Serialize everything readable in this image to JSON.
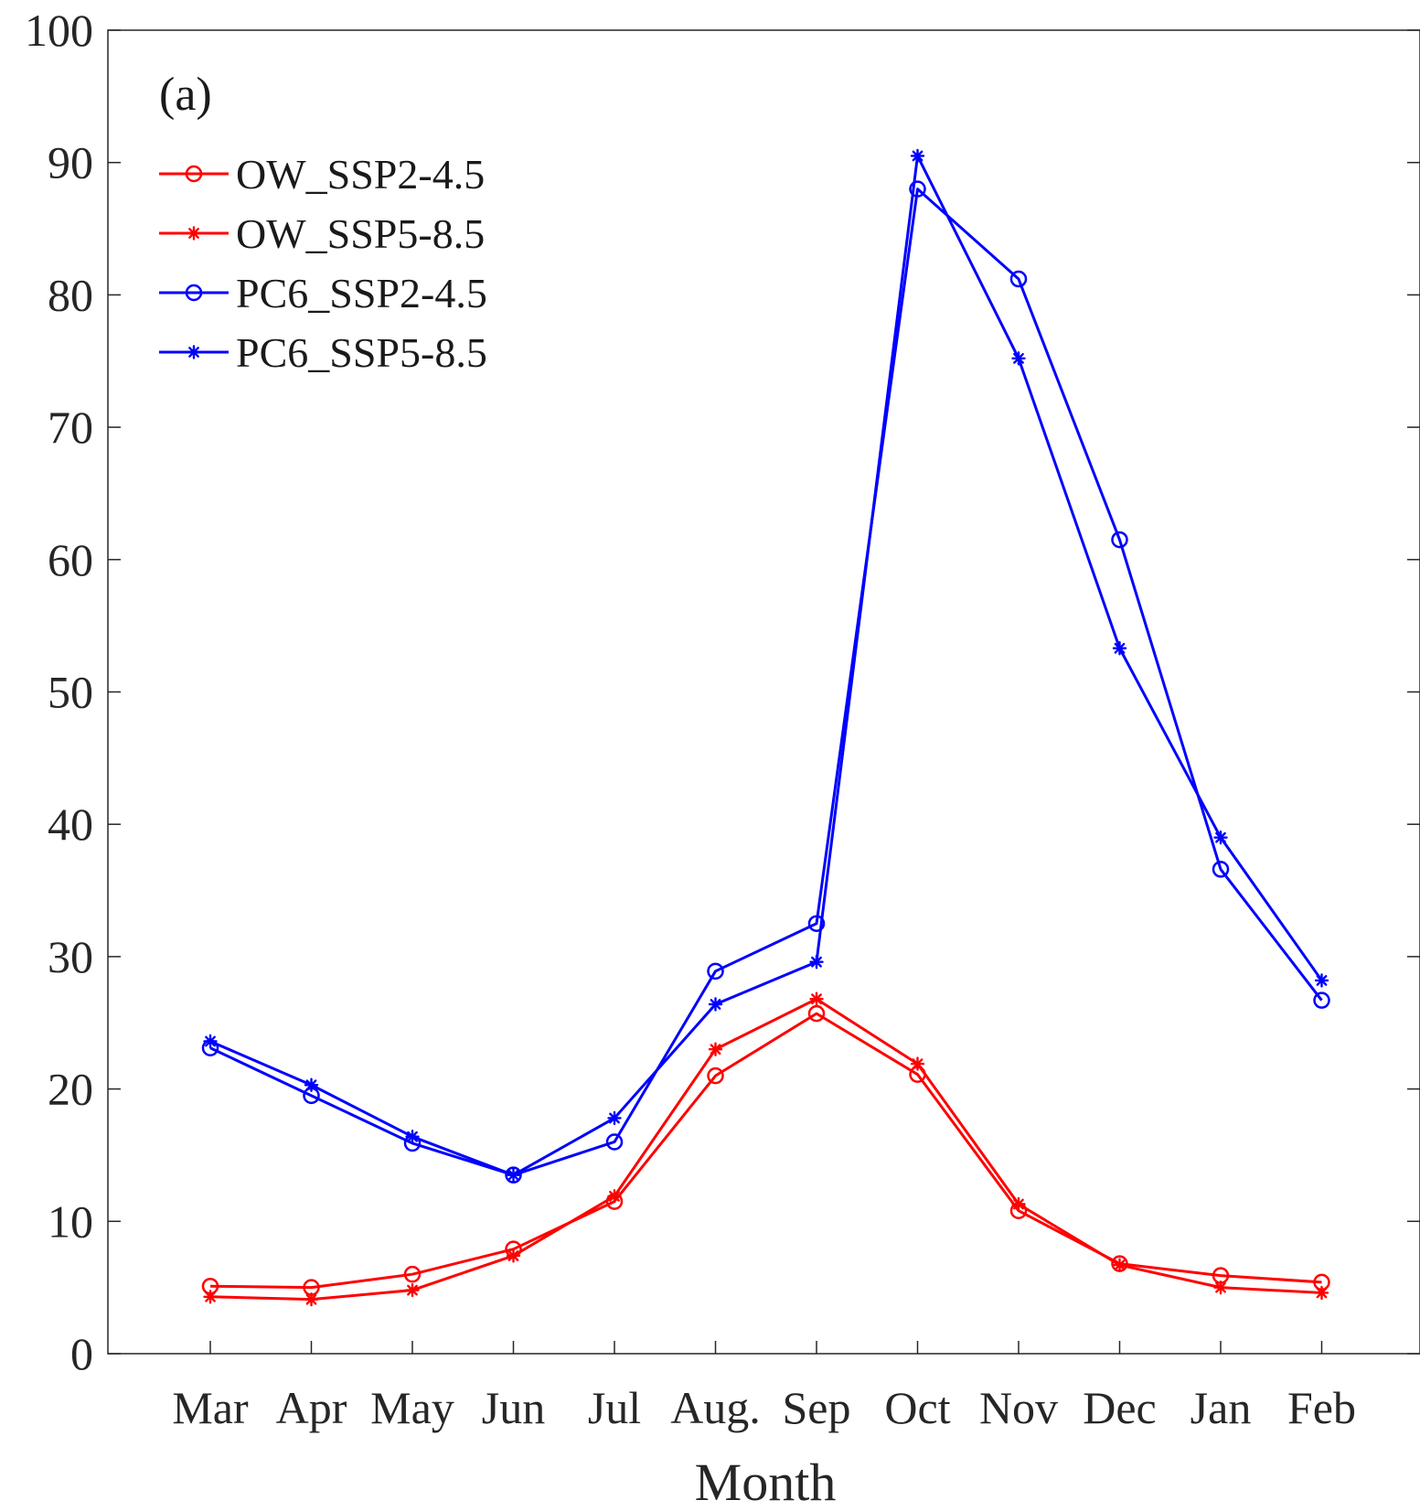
{
  "chart_data": {
    "type": "line",
    "panel_label": "(a)",
    "title": "",
    "xlabel": "Month",
    "ylabel": "",
    "categories": [
      "Mar",
      "Apr",
      "May",
      "Jun",
      "Jul",
      "Aug.",
      "Sep",
      "Oct",
      "Nov",
      "Dec",
      "Jan",
      "Feb"
    ],
    "ylim": [
      0,
      100
    ],
    "yticks": [
      0,
      10,
      20,
      30,
      40,
      50,
      60,
      70,
      80,
      90,
      100
    ],
    "grid": false,
    "legend_position": "top-left",
    "series": [
      {
        "name": "OW_SSP2-4.5",
        "color": "#ff0000",
        "marker": "circle",
        "values": [
          5.1,
          5.0,
          6.0,
          7.9,
          11.5,
          21.0,
          25.7,
          21.1,
          10.8,
          6.8,
          5.9,
          5.4
        ]
      },
      {
        "name": "OW_SSP5-8.5",
        "color": "#ff0000",
        "marker": "star",
        "values": [
          4.3,
          4.1,
          4.8,
          7.4,
          11.9,
          23.0,
          26.8,
          21.9,
          11.3,
          6.7,
          5.0,
          4.6
        ]
      },
      {
        "name": "PC6_SSP2-4.5",
        "color": "#0000ff",
        "marker": "circle",
        "values": [
          23.1,
          19.5,
          15.9,
          13.5,
          16.0,
          28.9,
          32.5,
          88.0,
          81.2,
          61.5,
          36.6,
          26.7
        ]
      },
      {
        "name": "PC6_SSP5-8.5",
        "color": "#0000ff",
        "marker": "star",
        "values": [
          23.6,
          20.3,
          16.4,
          13.5,
          17.8,
          26.4,
          29.6,
          90.5,
          75.2,
          53.3,
          39.0,
          28.2
        ]
      }
    ]
  }
}
